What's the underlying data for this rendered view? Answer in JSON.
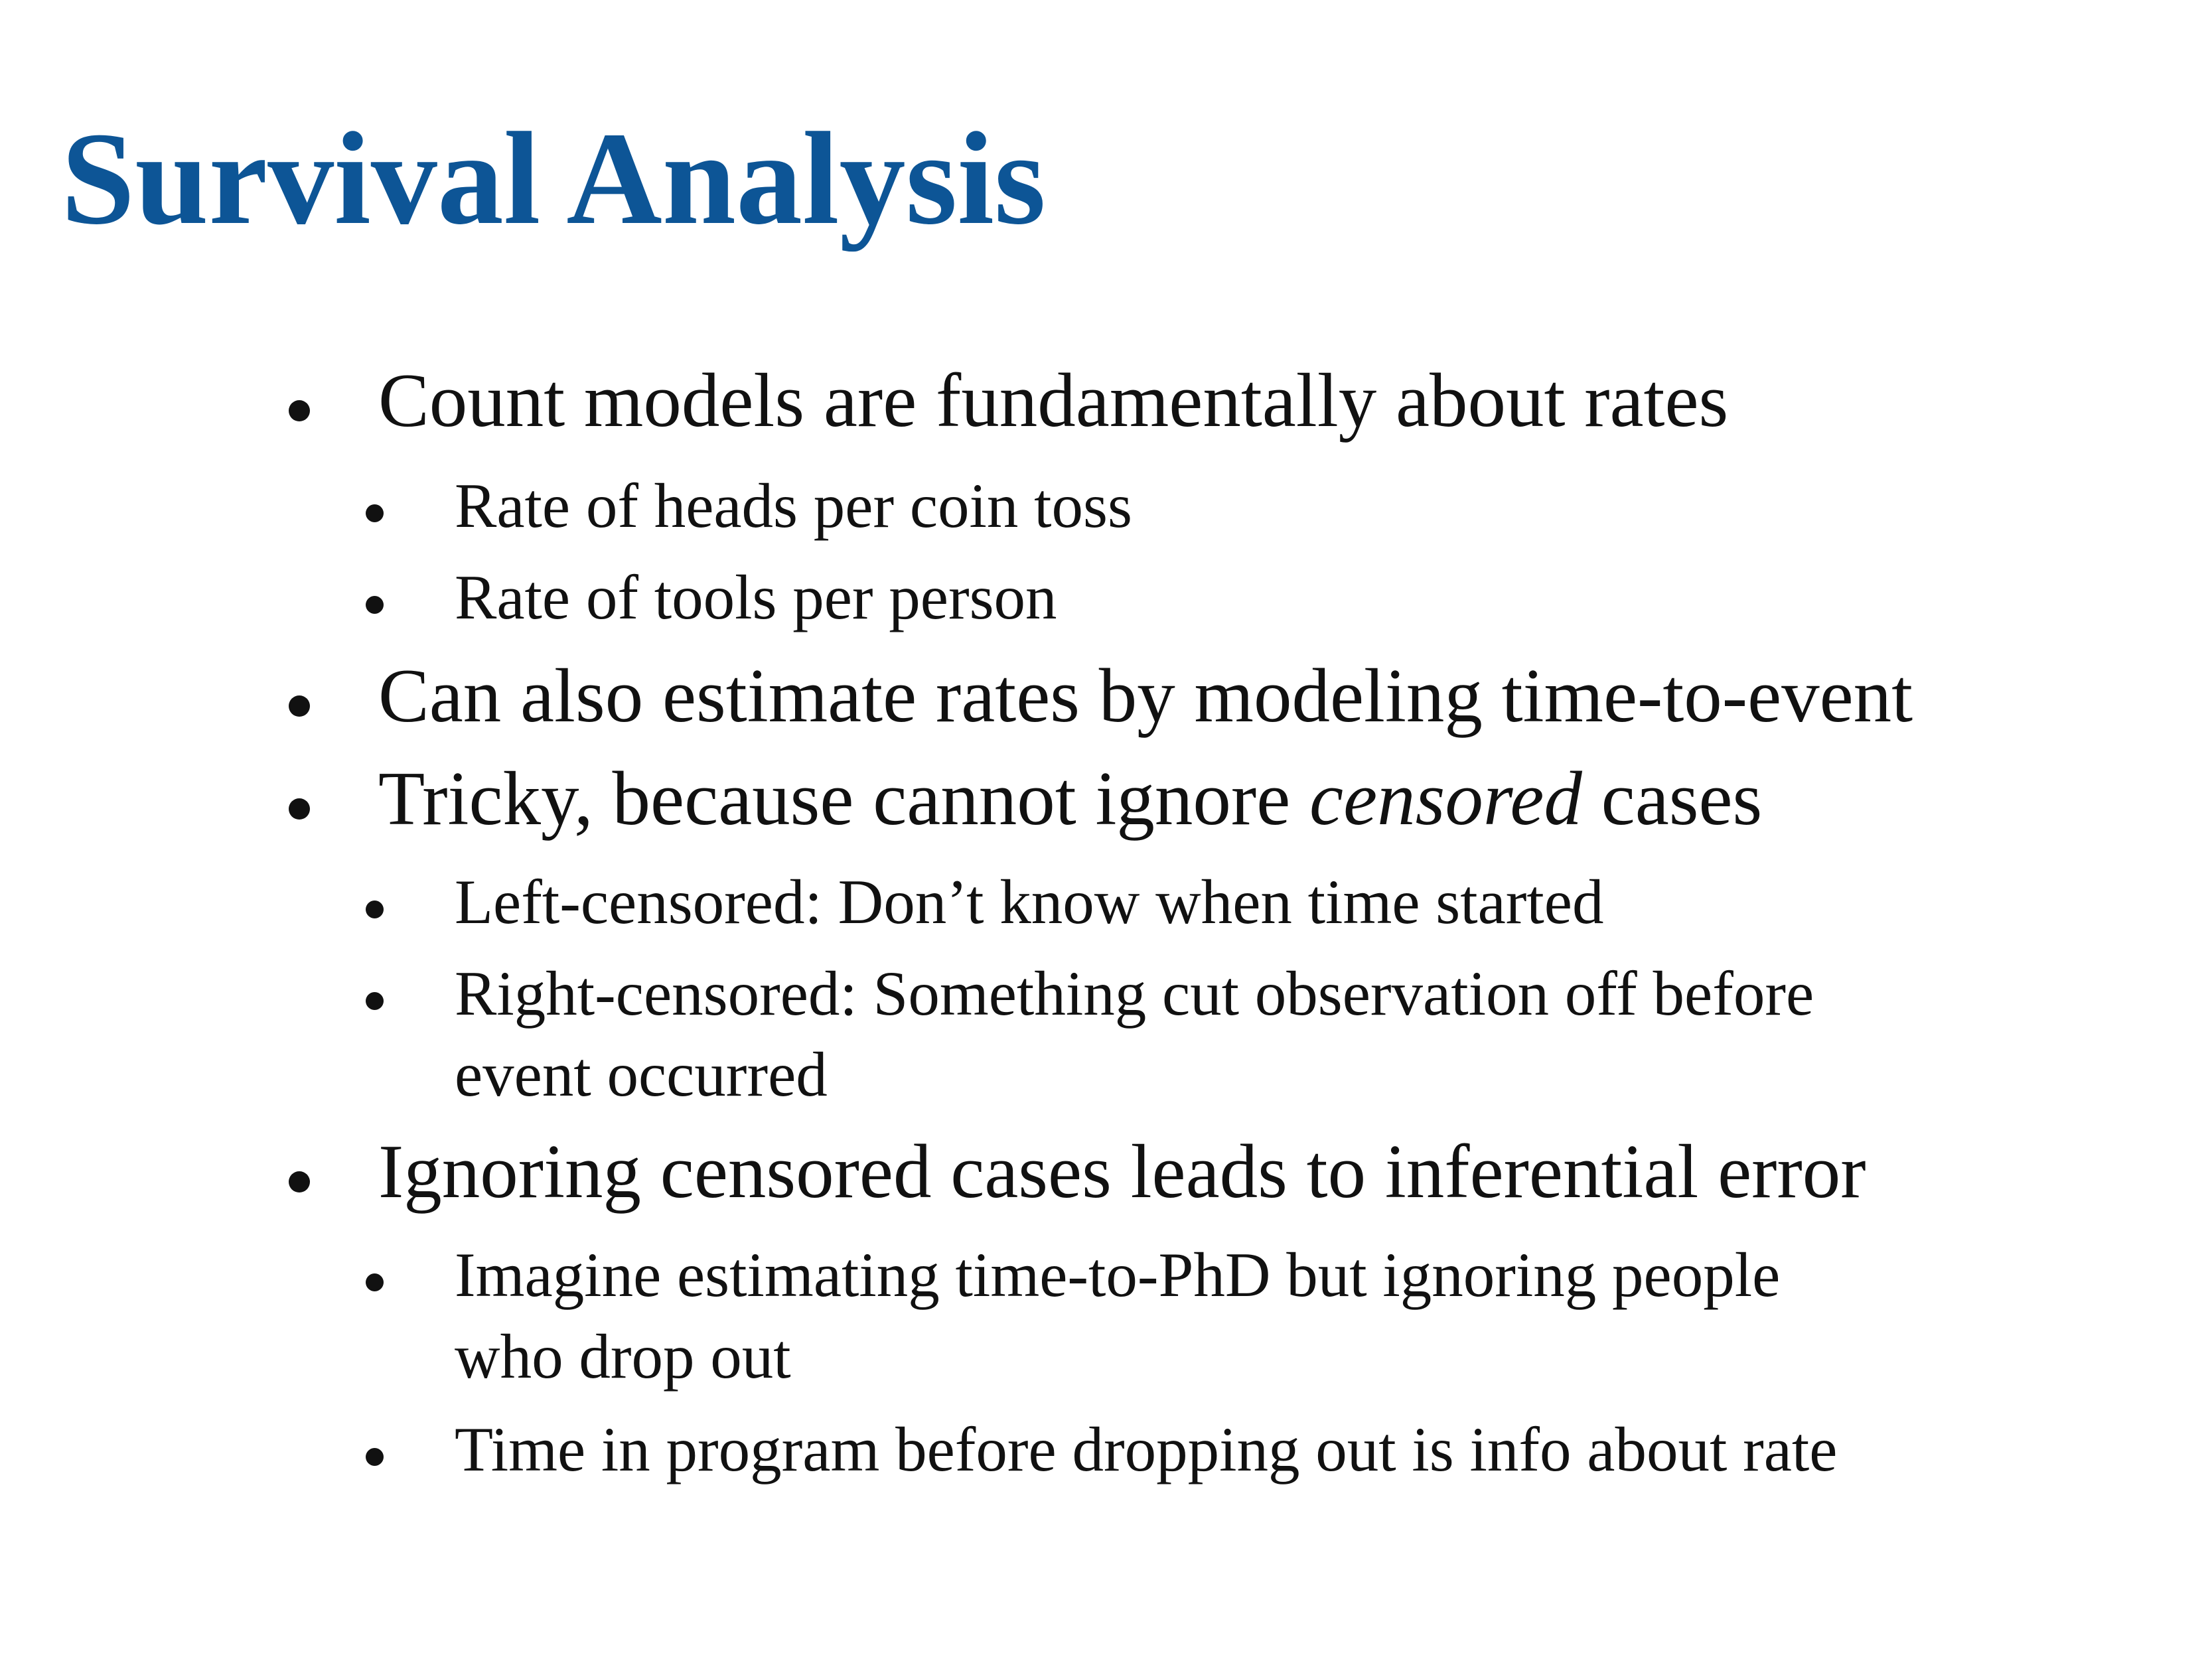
{
  "slide": {
    "title": "Survival Analysis",
    "bullets": [
      {
        "level": 1,
        "text": "Count models are fundamentally about rates"
      },
      {
        "level": 2,
        "text": "Rate of heads per coin toss"
      },
      {
        "level": 2,
        "text": "Rate of tools per person"
      },
      {
        "level": 1,
        "text": "Can also estimate rates by modeling time-to-event"
      },
      {
        "level": 1,
        "text_before": "Tricky, because cannot ignore ",
        "text_emphasis": "censored",
        "text_after": " cases"
      },
      {
        "level": 2,
        "text": "Left-censored: Don’t know when time started"
      },
      {
        "level": 2,
        "text": "Right-censored: Something cut observation off before"
      },
      {
        "level": 2,
        "text": "event occurred"
      },
      {
        "level": 1,
        "text": "Ignoring censored cases leads to inferential error"
      },
      {
        "level": 2,
        "text": "Imagine estimating time-to-PhD but ignoring people"
      },
      {
        "level": 2,
        "text": "who drop out"
      },
      {
        "level": 2,
        "text": "Time in program before dropping out is info about rate"
      }
    ]
  },
  "colors": {
    "title": "#0d5596",
    "text": "#111111",
    "background": "#ffffff"
  }
}
